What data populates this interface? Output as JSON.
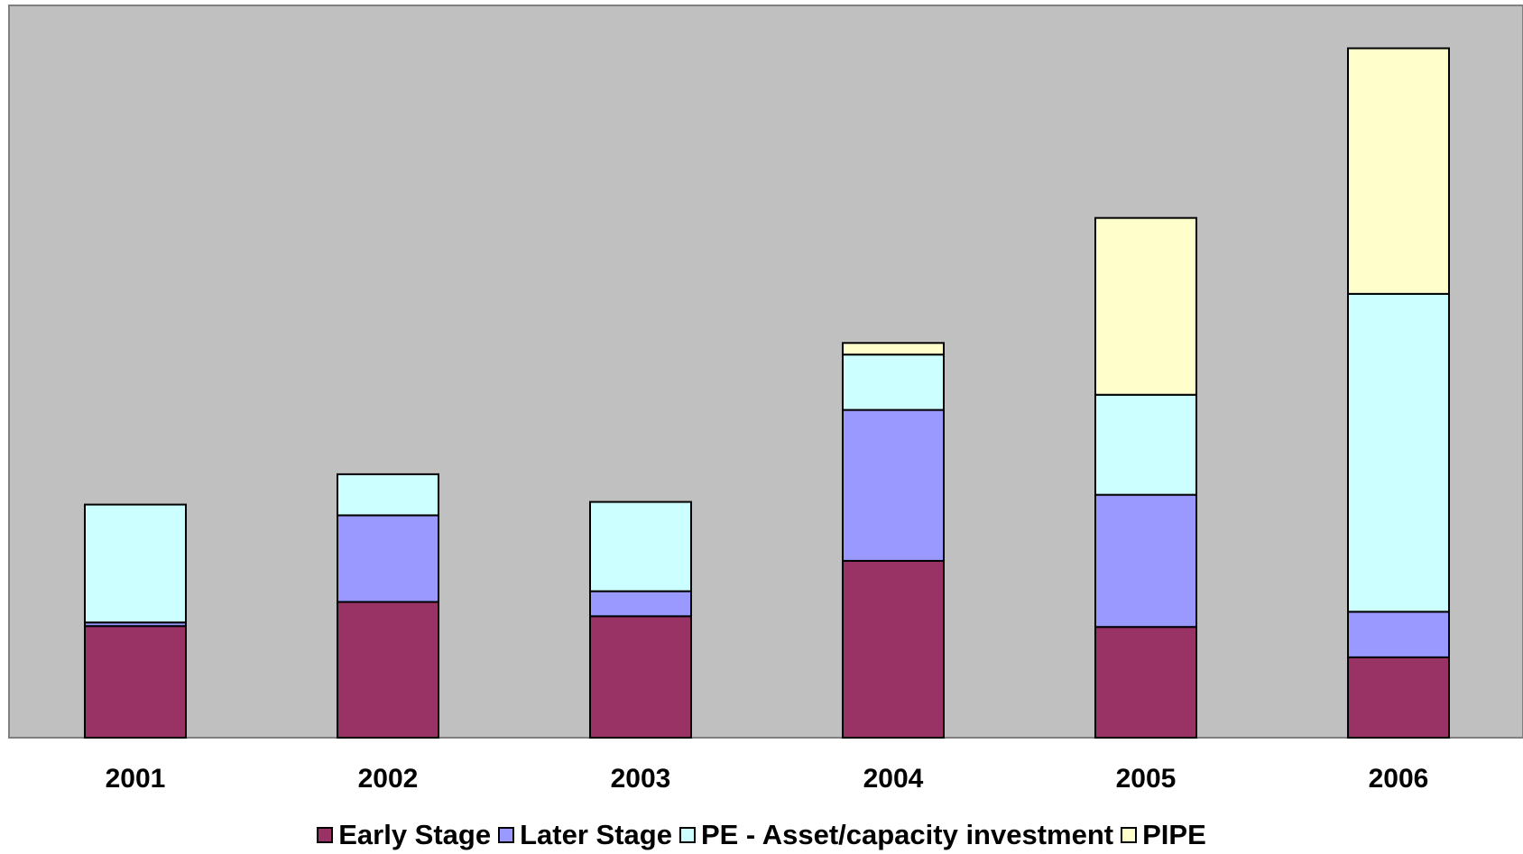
{
  "chart_data": {
    "type": "bar",
    "stacked": true,
    "categories": [
      "2001",
      "2002",
      "2003",
      "2004",
      "2005",
      "2006"
    ],
    "series": [
      {
        "name": "Early Stage",
        "color": "#993366",
        "values": [
          125,
          152,
          136,
          198,
          124,
          90
        ]
      },
      {
        "name": "Later Stage",
        "color": "#9999FF",
        "values": [
          4,
          97,
          28,
          169,
          148,
          51
        ]
      },
      {
        "name": "PE - Asset/capacity investment",
        "color": "#CCFFFF",
        "values": [
          132,
          46,
          100,
          62,
          112,
          356
        ]
      },
      {
        "name": "PIPE",
        "color": "#FFFFCC",
        "values": [
          0,
          0,
          0,
          13,
          198,
          275
        ]
      }
    ],
    "ylim": [
      0,
      820
    ],
    "grid": false,
    "legend_position": "bottom",
    "plot_background": "#C0C0C0"
  }
}
